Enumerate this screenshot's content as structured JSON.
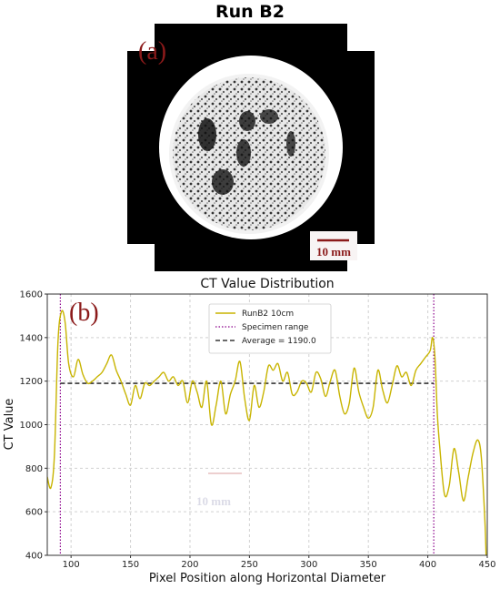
{
  "panel_a": {
    "title": "Run B2",
    "panel_label": "(a)",
    "scale_bar_label": "10 mm"
  },
  "chart_data": {
    "type": "line",
    "title": "CT Value Distribution",
    "panel_label": "(b)",
    "xlabel": "Pixel Position along Horizontal Diameter",
    "ylabel": "CT Value",
    "xlim": [
      80,
      450
    ],
    "ylim": [
      400,
      1600
    ],
    "xticks": [
      100,
      150,
      200,
      250,
      300,
      350,
      400,
      450
    ],
    "yticks": [
      400,
      600,
      800,
      1000,
      1200,
      1400,
      1600
    ],
    "grid": true,
    "legend_position": "top-center",
    "series": [
      {
        "name": "RunB2 10cm",
        "color": "#c8b400",
        "x": [
          80,
          83,
          86,
          89,
          92,
          95,
          98,
          102,
          106,
          110,
          114,
          118,
          122,
          126,
          130,
          134,
          138,
          142,
          146,
          150,
          154,
          158,
          162,
          166,
          170,
          174,
          178,
          182,
          186,
          190,
          194,
          198,
          202,
          206,
          210,
          214,
          218,
          222,
          226,
          230,
          234,
          238,
          242,
          246,
          250,
          254,
          258,
          262,
          266,
          270,
          274,
          278,
          282,
          286,
          290,
          294,
          298,
          302,
          306,
          310,
          314,
          318,
          322,
          326,
          330,
          334,
          338,
          342,
          346,
          350,
          354,
          358,
          362,
          366,
          370,
          374,
          378,
          382,
          386,
          390,
          394,
          398,
          402,
          404,
          406,
          408,
          410,
          414,
          418,
          422,
          426,
          430,
          434,
          438,
          442,
          445,
          448,
          449
        ],
        "y": [
          760,
          710,
          860,
          1380,
          1520,
          1470,
          1280,
          1220,
          1300,
          1230,
          1190,
          1200,
          1220,
          1240,
          1280,
          1320,
          1250,
          1200,
          1140,
          1090,
          1180,
          1120,
          1190,
          1180,
          1200,
          1220,
          1240,
          1200,
          1220,
          1180,
          1200,
          1100,
          1200,
          1150,
          1080,
          1200,
          1000,
          1090,
          1200,
          1050,
          1140,
          1200,
          1290,
          1120,
          1020,
          1180,
          1080,
          1150,
          1270,
          1250,
          1280,
          1200,
          1240,
          1140,
          1150,
          1200,
          1190,
          1150,
          1240,
          1210,
          1130,
          1200,
          1250,
          1130,
          1050,
          1100,
          1260,
          1150,
          1080,
          1030,
          1080,
          1250,
          1160,
          1100,
          1180,
          1270,
          1220,
          1240,
          1180,
          1250,
          1280,
          1310,
          1340,
          1400,
          1310,
          1050,
          900,
          680,
          720,
          890,
          780,
          650,
          760,
          870,
          930,
          850,
          560,
          400
        ]
      },
      {
        "name": "Specimen range",
        "color": "#8b008b",
        "x": [
          91,
          405
        ]
      },
      {
        "name": "Average = 1190.0",
        "color": "#111111",
        "y": 1190.0,
        "x": [
          91,
          405
        ]
      }
    ],
    "annotation_image_text": "10 mm"
  }
}
